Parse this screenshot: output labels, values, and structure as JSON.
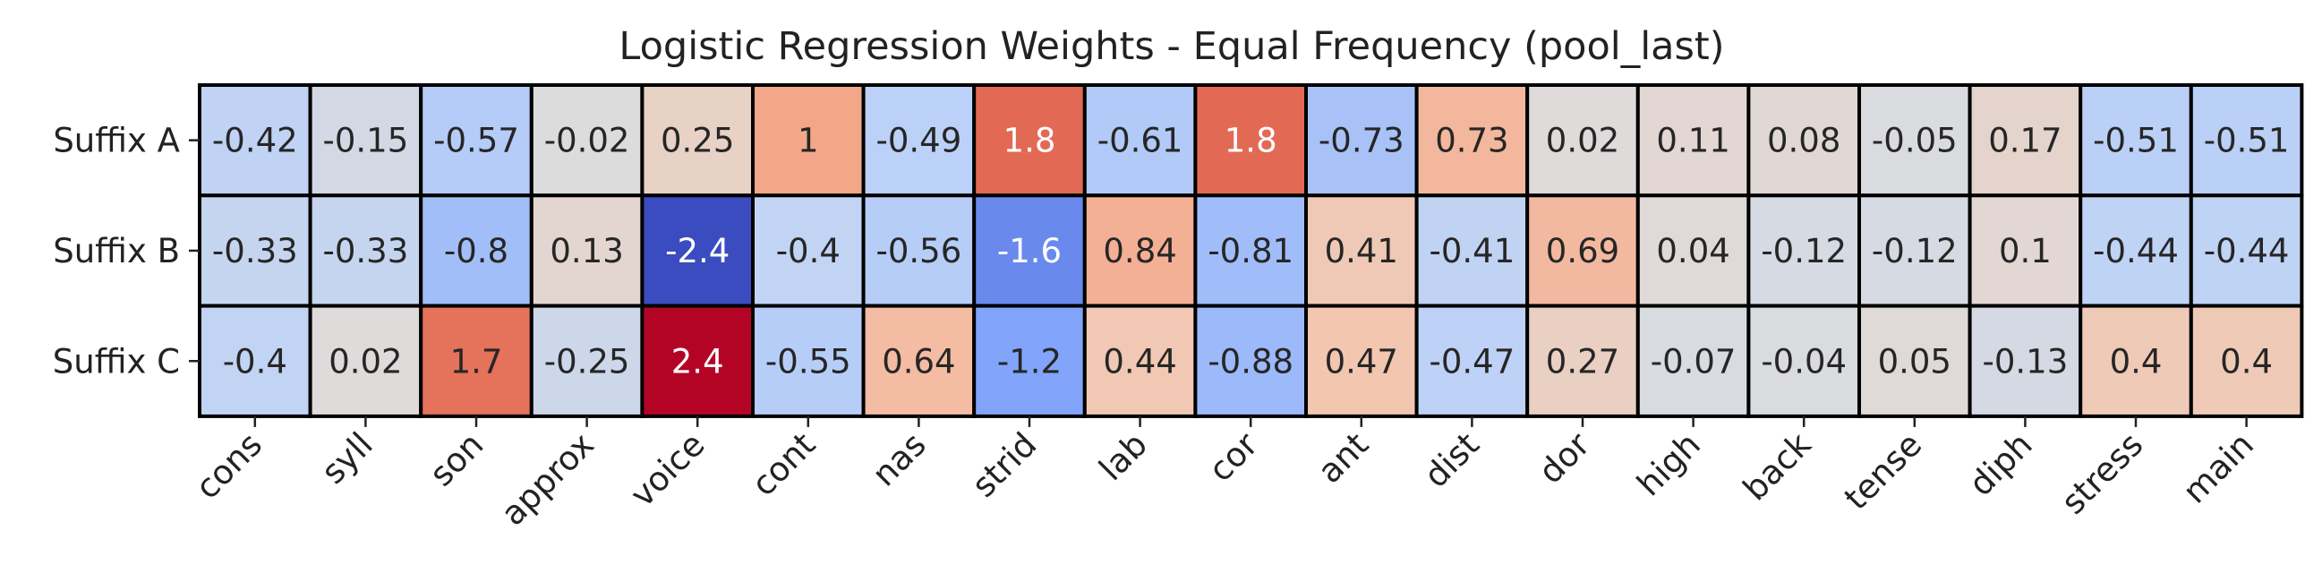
{
  "chart_data": {
    "type": "heatmap",
    "title": "Logistic Regression Weights - Equal Frequency (pool_last)",
    "rows": [
      "Suffix A",
      "Suffix B",
      "Suffix C"
    ],
    "columns": [
      "cons",
      "syll",
      "son",
      "approx",
      "voice",
      "cont",
      "nas",
      "strid",
      "lab",
      "cor",
      "ant",
      "dist",
      "dor",
      "high",
      "back",
      "tense",
      "diph",
      "stress",
      "main"
    ],
    "values": [
      [
        -0.42,
        -0.15,
        -0.57,
        -0.02,
        0.25,
        1,
        -0.49,
        1.8,
        -0.61,
        1.8,
        -0.73,
        0.73,
        0.02,
        0.11,
        0.08,
        -0.05,
        0.17,
        -0.51,
        -0.51
      ],
      [
        -0.33,
        -0.33,
        -0.8,
        0.13,
        -2.4,
        -0.4,
        -0.56,
        -1.6,
        0.84,
        -0.81,
        0.41,
        -0.41,
        0.69,
        0.04,
        -0.12,
        -0.12,
        0.1,
        -0.44,
        -0.44
      ],
      [
        -0.4,
        0.02,
        1.7,
        -0.25,
        2.4,
        -0.55,
        0.64,
        -1.2,
        0.44,
        -0.88,
        0.47,
        -0.47,
        0.27,
        -0.07,
        -0.04,
        0.05,
        -0.13,
        0.4,
        0.4
      ]
    ],
    "colormap": "coolwarm",
    "vmin": -2.4,
    "vmax": 2.4,
    "annotated": true,
    "colorbar": false
  }
}
